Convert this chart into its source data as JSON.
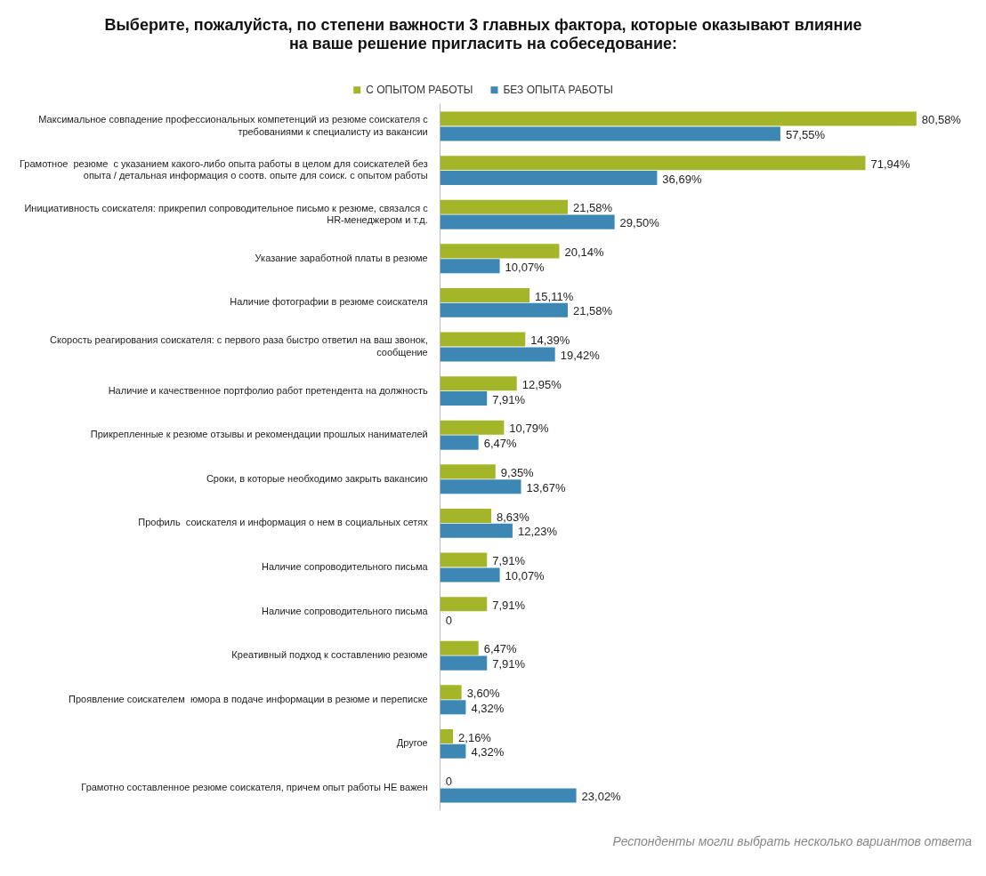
{
  "chart_data": {
    "type": "bar",
    "orientation": "horizontal",
    "title": "Выберите, пожалуйста, по степени важности 3 главных фактора, которые оказывают влияние на ваше решение пригласить на собеседование:",
    "categories": [
      "Максимальное совпадение профессиональных компетенций из резюме соискателя с требованиями к специалисту из вакансии",
      "Грамотное  резюме  с указанием какого-либо опыта работы в целом для соискателей без опыта / детальная информация о соотв. опыте для соиск. с опытом работы",
      "Инициативность соискателя: прикрепил сопроводительное письмо к резюме, связался с HR-менеджером и т.д.",
      "Указание заработной платы в резюме",
      "Наличие фотографии в резюме соискателя",
      "Скорость реагирования соискателя: с первого раза быстро ответил на ваш звонок, сообщение",
      "Наличие и качественное портфолио работ претендента на должность",
      "Прикрепленные к резюме отзывы и рекомендации прошлых нанимателей",
      "Сроки, в которые необходимо закрыть вакансию",
      "Профиль  соискателя и информация о нем в социальных сетях",
      "Наличие сопроводительного письма",
      "Наличие сопроводительного письма",
      "Креативный подход к составлению резюме",
      "Проявление соискателем  юмора в подаче информации в резюме и переписке",
      "Другое",
      "Грамотно составленное резюме соискателя, причем опыт работы НЕ важен"
    ],
    "series": [
      {
        "name": "С ОПЫТОМ РАБОТЫ",
        "color": "#a4b52a",
        "values": [
          80.58,
          71.94,
          21.58,
          20.14,
          15.11,
          14.39,
          12.95,
          10.79,
          9.35,
          8.63,
          7.91,
          7.91,
          6.47,
          3.6,
          2.16,
          0
        ],
        "value_labels": [
          "80,58%",
          "71,94%",
          "21,58%",
          "20,14%",
          "15,11%",
          "14,39%",
          "12,95%",
          "10,79%",
          "9,35%",
          "8,63%",
          "7,91%",
          "7,91%",
          "6,47%",
          "3,60%",
          "2,16%",
          "0"
        ]
      },
      {
        "name": "БЕЗ ОПЫТА РАБОТЫ",
        "color": "#3d87b5",
        "values": [
          57.55,
          36.69,
          29.5,
          10.07,
          21.58,
          19.42,
          7.91,
          6.47,
          13.67,
          12.23,
          10.07,
          0,
          7.91,
          4.32,
          4.32,
          23.02
        ],
        "value_labels": [
          "57,55%",
          "36,69%",
          "29,50%",
          "10,07%",
          "21,58%",
          "19,42%",
          "7,91%",
          "6,47%",
          "13,67%",
          "12,23%",
          "10,07%",
          "0",
          "7,91%",
          "4,32%",
          "4,32%",
          "23,02%"
        ]
      }
    ],
    "legend": "top",
    "annotations": [
      "Респонденты могли выбрать несколько вариантов ответа"
    ]
  }
}
